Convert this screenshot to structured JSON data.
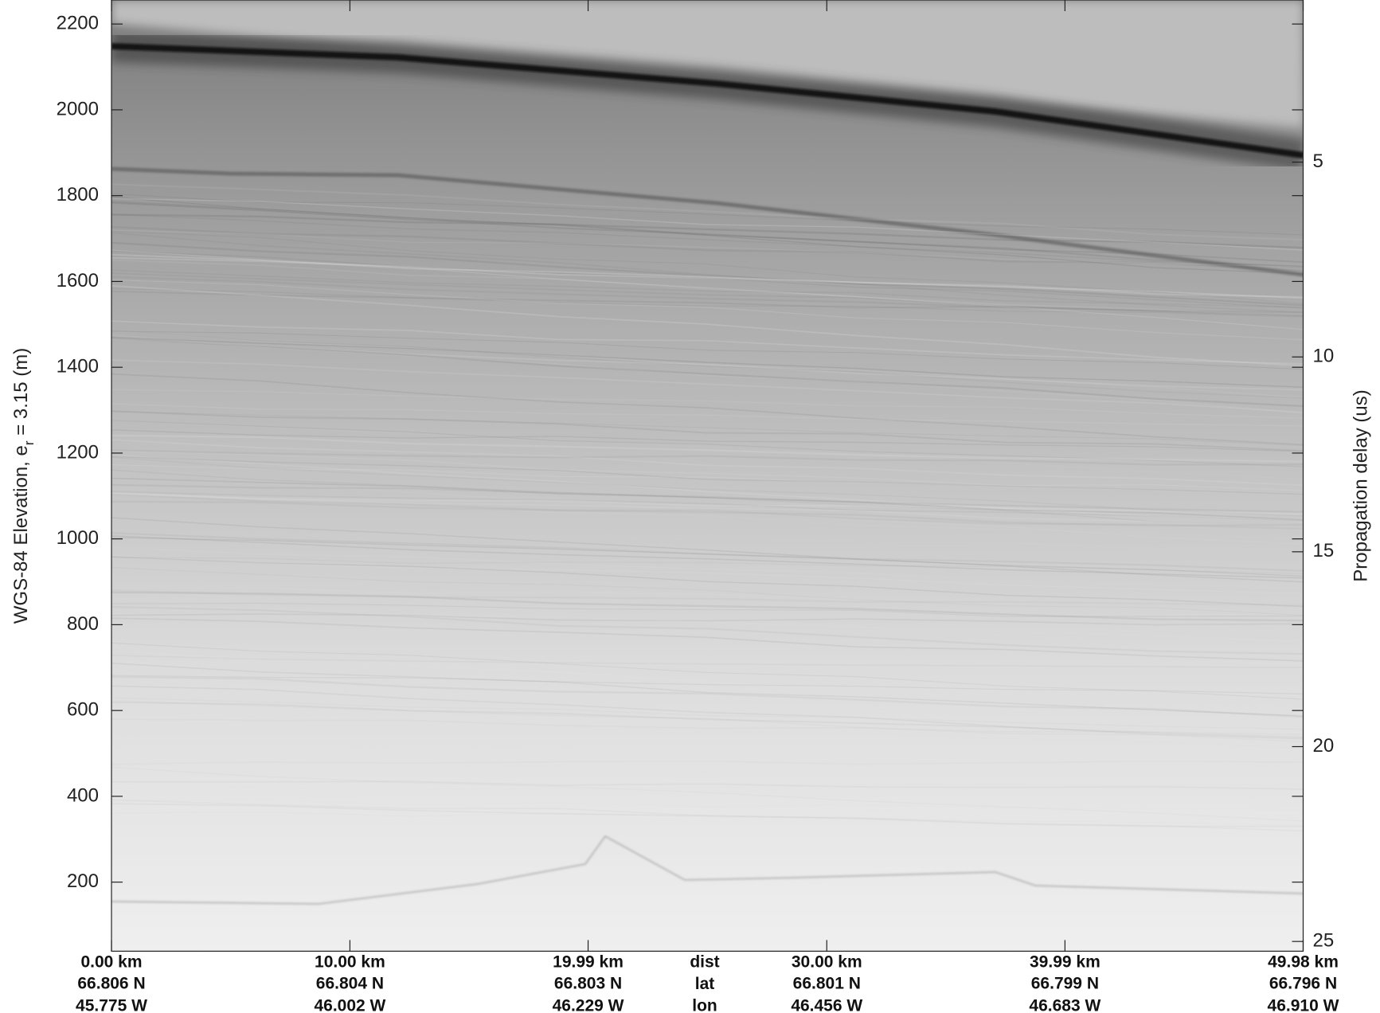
{
  "chart_data": {
    "type": "echogram",
    "y_label": "WGS-84 Elevation, e",
    "y_label_sub": "r",
    "y_label_rest": " = 3.15 (m)",
    "y2_label": "Propagation delay (us)",
    "ylim": [
      39,
      2256
    ],
    "yticks": [
      200,
      400,
      600,
      800,
      1000,
      1200,
      1400,
      1600,
      1800,
      2000,
      2200
    ],
    "y2lim": [
      0.84,
      25.25
    ],
    "y2ticks": [
      5,
      10,
      15,
      20,
      25
    ],
    "xlim": [
      0,
      49.98
    ],
    "xticks": [
      {
        "value": 0,
        "label": "0.00 km"
      },
      {
        "value": 10.0,
        "label": "10.00 km"
      },
      {
        "value": 19.99,
        "label": "19.99 km"
      },
      {
        "value": 30.0,
        "label": "30.00 km"
      },
      {
        "value": 39.99,
        "label": "39.99 km"
      },
      {
        "value": 49.98,
        "label": "49.98 km"
      }
    ],
    "lat_labels": [
      "66.806 N",
      "66.804 N",
      "66.803 N",
      "66.801 N",
      "66.799 N",
      "66.796 N"
    ],
    "lon_labels": [
      "45.775 W",
      "46.002 W",
      "46.229 W",
      "46.456 W",
      "46.683 W",
      "46.910 W"
    ],
    "row_labels": [
      "dist",
      "lat",
      "lon"
    ]
  }
}
